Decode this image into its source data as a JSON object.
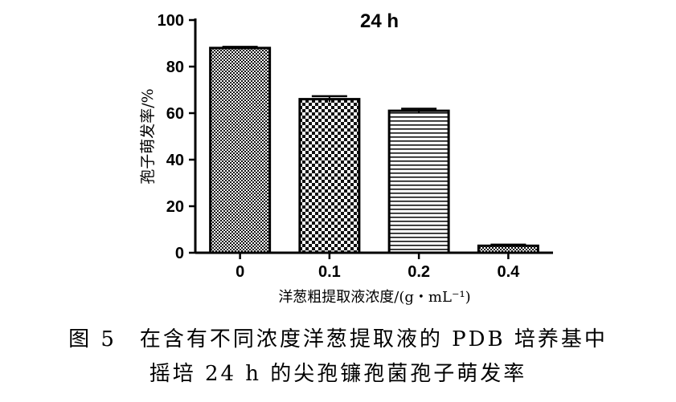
{
  "chart_data": {
    "type": "bar",
    "title": "24 h",
    "ylabel": "孢子萌发率/%",
    "xlabel": "洋葱粗提取液浓度/(g・mL⁻¹)",
    "categories": [
      "0",
      "0.1",
      "0.2",
      "0.4"
    ],
    "values": [
      88,
      66,
      61,
      3
    ],
    "errors": [
      0.5,
      1.3,
      0.9,
      0.5
    ],
    "ylim": [
      0,
      100
    ],
    "yticks": [
      "0",
      "20",
      "40",
      "60",
      "80",
      "100"
    ],
    "grid": false,
    "legend": "none",
    "patterns": [
      "fine-check",
      "coarse-check",
      "horizontal-lines",
      "fine-check"
    ]
  },
  "caption": {
    "line1": "图 5　在含有不同浓度洋葱提取液的 PDB 培养基中",
    "line2": "摇培 24 h 的尖孢镰孢菌孢子萌发率"
  }
}
